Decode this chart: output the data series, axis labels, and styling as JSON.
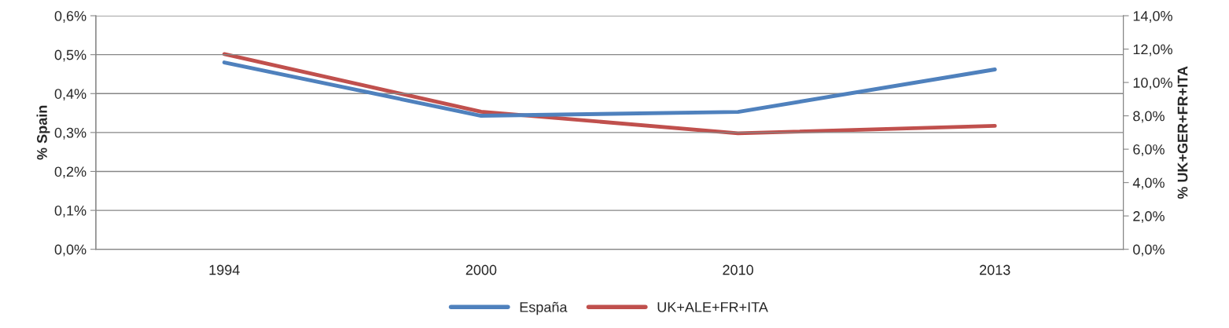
{
  "chart_data": {
    "type": "line",
    "ylabel": "% Spain",
    "y2label": "% UK+GER+FR+ITA",
    "categories": [
      "1994",
      "2000",
      "2010",
      "2013"
    ],
    "series": [
      {
        "name": "España",
        "color": "#4f81bd",
        "values": [
          0.48,
          0.343,
          0.353,
          0.462
        ]
      },
      {
        "name": "UK+ALE+FR+ITA",
        "color": "#c0504d",
        "axis": "y2",
        "values": [
          11.7,
          8.25,
          6.95,
          7.4
        ]
      }
    ],
    "ylim": [
      0,
      0.6
    ],
    "yticks": [
      {
        "value": 0,
        "label": "0,0%"
      },
      {
        "value": 0.1,
        "label": "0,1%"
      },
      {
        "value": 0.2,
        "label": "0,2%"
      },
      {
        "value": 0.3,
        "label": "0,3%"
      },
      {
        "value": 0.4,
        "label": "0,4%"
      },
      {
        "value": 0.5,
        "label": "0,5%"
      },
      {
        "value": 0.6,
        "label": "0,6%"
      }
    ],
    "y2lim": [
      0,
      14
    ],
    "y2ticks": [
      {
        "value": 0,
        "label": "0,0%"
      },
      {
        "value": 2,
        "label": "2,0%"
      },
      {
        "value": 4,
        "label": "4,0%"
      },
      {
        "value": 6,
        "label": "6,0%"
      },
      {
        "value": 8,
        "label": "8,0%"
      },
      {
        "value": 10,
        "label": "10,0%"
      },
      {
        "value": 12,
        "label": "12,0%"
      },
      {
        "value": 14,
        "label": "14,0%"
      }
    ],
    "grid": "y",
    "legend": "bottom",
    "marker": "none",
    "line_style": "solid"
  }
}
